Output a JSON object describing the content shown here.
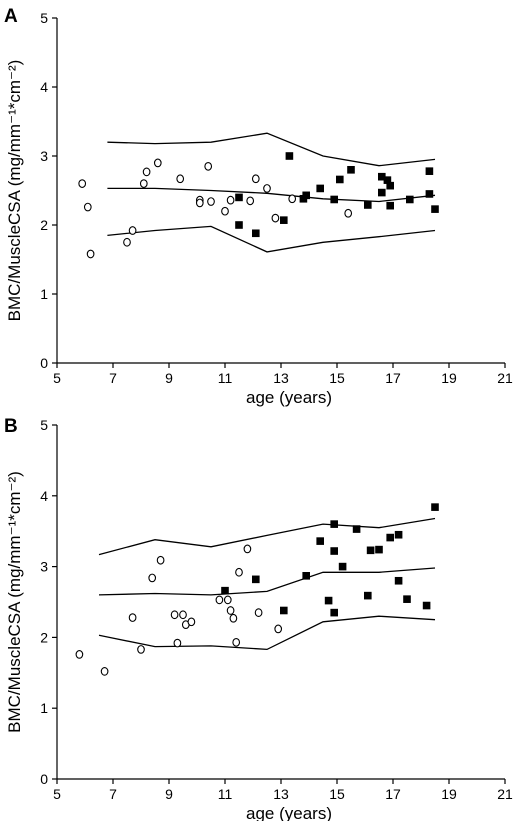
{
  "chart_data": [
    {
      "type": "scatter",
      "panel_label": "A",
      "xlabel": "age (years)",
      "ylabel": "BMC/MuscleCSA (mg/mm⁻¹*cm⁻²)",
      "xlim": [
        5,
        21
      ],
      "ylim": [
        0,
        5
      ],
      "xticks": [
        "5",
        "7",
        "9",
        "11",
        "13",
        "15",
        "17",
        "19",
        "21"
      ],
      "yticks": [
        "0",
        "1",
        "2",
        "3",
        "4",
        "5"
      ],
      "grid": false,
      "legend": "none",
      "series": [
        {
          "marker": "open-circle",
          "points": [
            [
              5.9,
              2.6
            ],
            [
              6.1,
              2.26
            ],
            [
              6.2,
              1.58
            ],
            [
              7.5,
              1.75
            ],
            [
              7.7,
              1.92
            ],
            [
              8.1,
              2.6
            ],
            [
              8.2,
              2.77
            ],
            [
              8.6,
              2.9
            ],
            [
              9.4,
              2.67
            ],
            [
              10.1,
              2.36
            ],
            [
              10.1,
              2.32
            ],
            [
              10.4,
              2.85
            ],
            [
              10.5,
              2.34
            ],
            [
              11.0,
              2.2
            ],
            [
              11.2,
              2.36
            ],
            [
              11.9,
              2.35
            ],
            [
              12.1,
              2.67
            ],
            [
              12.5,
              2.53
            ],
            [
              12.8,
              2.1
            ],
            [
              13.4,
              2.38
            ],
            [
              15.4,
              2.17
            ]
          ]
        },
        {
          "marker": "filled-square",
          "points": [
            [
              11.5,
              2.4
            ],
            [
              11.5,
              2.0
            ],
            [
              12.1,
              1.88
            ],
            [
              13.1,
              2.07
            ],
            [
              13.3,
              3.0
            ],
            [
              13.8,
              2.38
            ],
            [
              13.9,
              2.43
            ],
            [
              14.4,
              2.53
            ],
            [
              14.9,
              2.37
            ],
            [
              15.1,
              2.66
            ],
            [
              15.5,
              2.8
            ],
            [
              16.1,
              2.29
            ],
            [
              16.6,
              2.47
            ],
            [
              16.6,
              2.7
            ],
            [
              16.8,
              2.65
            ],
            [
              16.9,
              2.57
            ],
            [
              16.9,
              2.28
            ],
            [
              17.6,
              2.37
            ],
            [
              18.3,
              2.78
            ],
            [
              18.3,
              2.45
            ],
            [
              18.5,
              2.23
            ]
          ]
        }
      ],
      "reference_lines": [
        {
          "points": [
            [
              6.8,
              3.2
            ],
            [
              8.5,
              3.18
            ],
            [
              10.5,
              3.2
            ],
            [
              12.5,
              3.33
            ],
            [
              14.5,
              3.0
            ],
            [
              16.5,
              2.86
            ],
            [
              18.5,
              2.95
            ]
          ]
        },
        {
          "points": [
            [
              6.8,
              2.53
            ],
            [
              8.5,
              2.53
            ],
            [
              10.5,
              2.5
            ],
            [
              12.5,
              2.46
            ],
            [
              14.5,
              2.38
            ],
            [
              16.5,
              2.34
            ],
            [
              18.5,
              2.43
            ]
          ]
        },
        {
          "points": [
            [
              6.8,
              1.85
            ],
            [
              8.5,
              1.92
            ],
            [
              10.5,
              1.98
            ],
            [
              12.5,
              1.61
            ],
            [
              14.5,
              1.75
            ],
            [
              16.5,
              1.83
            ],
            [
              18.5,
              1.92
            ]
          ]
        }
      ]
    },
    {
      "type": "scatter",
      "panel_label": "B",
      "xlabel": "age (years)",
      "ylabel": "BMC/MuscleCSA (mg/mm⁻¹*cm⁻²)",
      "xlim": [
        5,
        21
      ],
      "ylim": [
        0,
        5
      ],
      "xticks": [
        "5",
        "7",
        "9",
        "11",
        "13",
        "15",
        "17",
        "19",
        "21"
      ],
      "yticks": [
        "0",
        "1",
        "2",
        "3",
        "4",
        "5"
      ],
      "grid": false,
      "legend": "none",
      "series": [
        {
          "marker": "open-circle",
          "points": [
            [
              5.8,
              1.76
            ],
            [
              6.7,
              1.52
            ],
            [
              7.7,
              2.28
            ],
            [
              8.0,
              1.83
            ],
            [
              8.4,
              2.84
            ],
            [
              8.7,
              3.09
            ],
            [
              9.2,
              2.32
            ],
            [
              9.3,
              1.92
            ],
            [
              9.5,
              2.32
            ],
            [
              9.6,
              2.18
            ],
            [
              9.8,
              2.22
            ],
            [
              10.8,
              2.53
            ],
            [
              11.1,
              2.53
            ],
            [
              11.2,
              2.38
            ],
            [
              11.3,
              2.27
            ],
            [
              11.4,
              1.93
            ],
            [
              11.5,
              2.92
            ],
            [
              11.8,
              3.25
            ],
            [
              12.2,
              2.35
            ],
            [
              12.9,
              2.12
            ]
          ]
        },
        {
          "marker": "filled-square",
          "points": [
            [
              11.0,
              2.66
            ],
            [
              12.1,
              2.82
            ],
            [
              13.1,
              2.38
            ],
            [
              13.9,
              2.87
            ],
            [
              14.4,
              3.36
            ],
            [
              14.7,
              2.52
            ],
            [
              14.9,
              3.6
            ],
            [
              14.9,
              3.22
            ],
            [
              14.9,
              2.35
            ],
            [
              15.2,
              3.0
            ],
            [
              15.7,
              3.53
            ],
            [
              16.1,
              2.59
            ],
            [
              16.2,
              3.23
            ],
            [
              16.5,
              3.24
            ],
            [
              16.9,
              3.41
            ],
            [
              17.2,
              3.45
            ],
            [
              17.2,
              2.8
            ],
            [
              17.5,
              2.54
            ],
            [
              18.2,
              2.45
            ],
            [
              18.5,
              3.84
            ]
          ]
        }
      ],
      "reference_lines": [
        {
          "points": [
            [
              6.5,
              3.17
            ],
            [
              8.5,
              3.38
            ],
            [
              10.5,
              3.28
            ],
            [
              12.5,
              3.44
            ],
            [
              14.5,
              3.6
            ],
            [
              16.5,
              3.55
            ],
            [
              18.5,
              3.68
            ]
          ]
        },
        {
          "points": [
            [
              6.5,
              2.6
            ],
            [
              8.5,
              2.62
            ],
            [
              10.5,
              2.6
            ],
            [
              12.5,
              2.65
            ],
            [
              14.5,
              2.92
            ],
            [
              16.5,
              2.92
            ],
            [
              18.5,
              2.98
            ]
          ]
        },
        {
          "points": [
            [
              6.5,
              2.03
            ],
            [
              8.5,
              1.87
            ],
            [
              10.5,
              1.88
            ],
            [
              12.5,
              1.83
            ],
            [
              14.5,
              2.22
            ],
            [
              16.5,
              2.3
            ],
            [
              18.5,
              2.25
            ]
          ]
        }
      ]
    }
  ]
}
